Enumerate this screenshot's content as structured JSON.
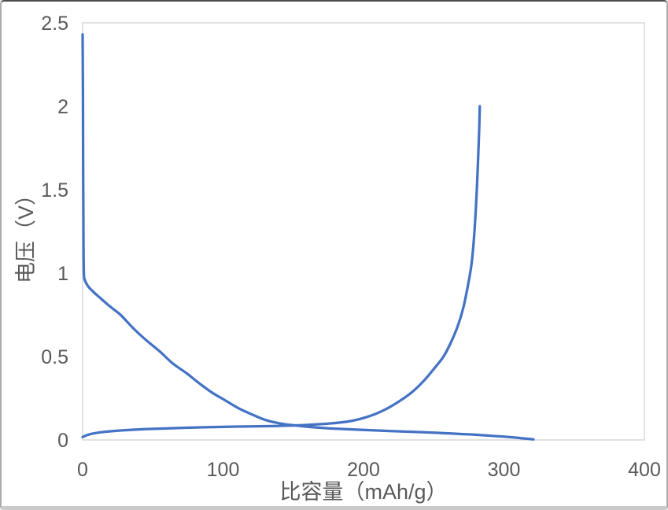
{
  "chart_data": {
    "type": "line",
    "title": "",
    "xlabel": "比容量（mAh/g）",
    "ylabel": "电压（V）",
    "xlim": [
      0,
      400
    ],
    "ylim": [
      0,
      2.5
    ],
    "x_ticks": [
      0,
      100,
      200,
      300,
      400
    ],
    "y_ticks": [
      0,
      0.5,
      1,
      1.5,
      2,
      2.5
    ],
    "grid": false,
    "legend": false,
    "colors": {
      "line": "#4472C4",
      "axis": "#D9D9D9",
      "text": "#595959"
    },
    "series": [
      {
        "name": "discharge-curve",
        "points": [
          [
            0,
            2.43
          ],
          [
            0.2,
            2.1
          ],
          [
            0.4,
            1.6
          ],
          [
            0.6,
            1.2
          ],
          [
            0.9,
            1.0
          ],
          [
            1.5,
            0.96
          ],
          [
            4,
            0.92
          ],
          [
            8,
            0.885
          ],
          [
            12,
            0.855
          ],
          [
            16,
            0.825
          ],
          [
            21,
            0.79
          ],
          [
            27,
            0.75
          ],
          [
            36,
            0.67
          ],
          [
            45,
            0.6
          ],
          [
            55,
            0.53
          ],
          [
            64,
            0.46
          ],
          [
            74,
            0.4
          ],
          [
            83,
            0.34
          ],
          [
            92,
            0.285
          ],
          [
            101,
            0.24
          ],
          [
            111,
            0.19
          ],
          [
            120,
            0.155
          ],
          [
            130,
            0.12
          ],
          [
            140,
            0.1
          ],
          [
            150,
            0.088
          ],
          [
            162,
            0.078
          ],
          [
            175,
            0.07
          ],
          [
            195,
            0.062
          ],
          [
            220,
            0.053
          ],
          [
            250,
            0.044
          ],
          [
            280,
            0.031
          ],
          [
            300,
            0.02
          ],
          [
            312,
            0.011
          ],
          [
            321,
            0.004
          ]
        ]
      },
      {
        "name": "charge-curve",
        "points": [
          [
            0,
            0.018
          ],
          [
            5,
            0.034
          ],
          [
            13,
            0.046
          ],
          [
            26,
            0.056
          ],
          [
            40,
            0.063
          ],
          [
            55,
            0.068
          ],
          [
            82,
            0.075
          ],
          [
            110,
            0.08
          ],
          [
            139,
            0.084
          ],
          [
            160,
            0.09
          ],
          [
            178,
            0.1
          ],
          [
            192,
            0.115
          ],
          [
            205,
            0.145
          ],
          [
            216,
            0.185
          ],
          [
            226,
            0.235
          ],
          [
            235,
            0.29
          ],
          [
            243,
            0.355
          ],
          [
            250,
            0.425
          ],
          [
            257,
            0.5
          ],
          [
            262,
            0.58
          ],
          [
            267,
            0.68
          ],
          [
            271,
            0.79
          ],
          [
            274,
            0.91
          ],
          [
            277,
            1.06
          ],
          [
            279,
            1.25
          ],
          [
            280.5,
            1.47
          ],
          [
            281.7,
            1.7
          ],
          [
            282.4,
            1.87
          ],
          [
            282.8,
            2.0
          ]
        ]
      }
    ]
  }
}
